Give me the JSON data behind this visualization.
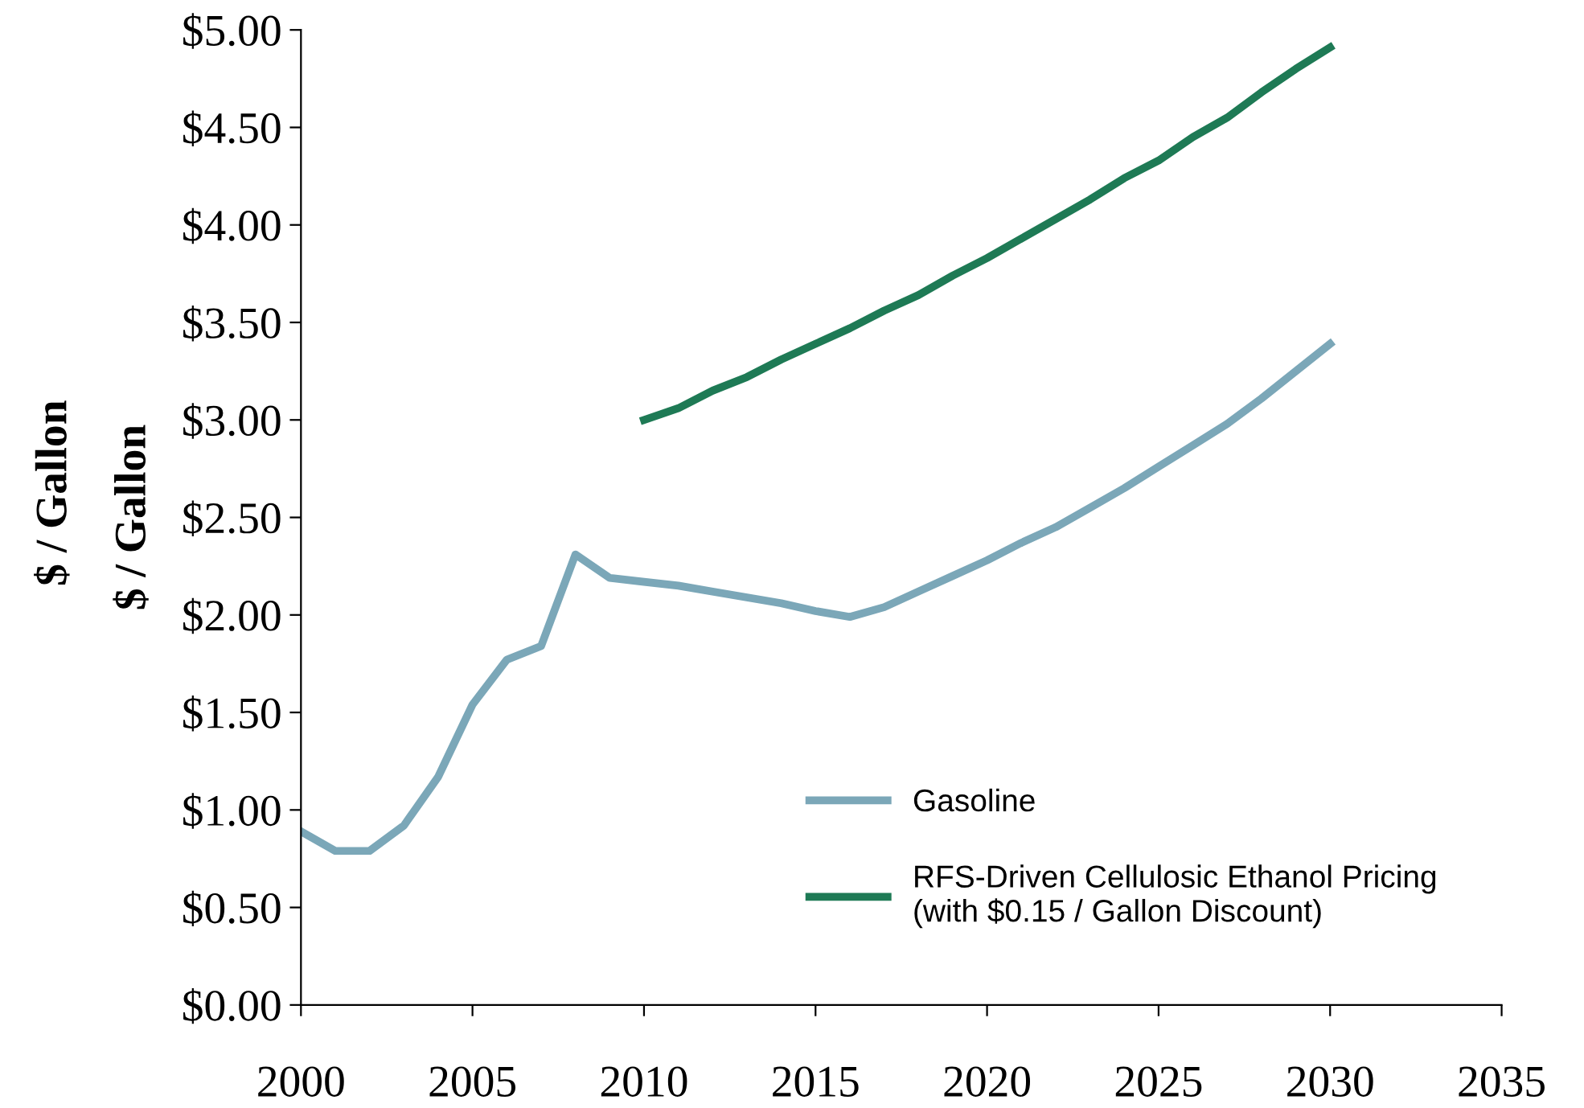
{
  "chart_data": {
    "type": "line",
    "ylabel": "$ / Gallon",
    "annotations": [
      "$ / Gallon"
    ],
    "xlim": [
      2000,
      2035
    ],
    "xticks": [
      2000,
      2005,
      2010,
      2015,
      2020,
      2025,
      2030,
      2035
    ],
    "ylim": [
      0,
      5
    ],
    "yticks": [
      {
        "value": 0,
        "label": "$0.00"
      },
      {
        "value": 0.5,
        "label": "$0.50"
      },
      {
        "value": 1,
        "label": "$1.00"
      },
      {
        "value": 1.5,
        "label": "$1.50"
      },
      {
        "value": 2,
        "label": "$2.00"
      },
      {
        "value": 2.5,
        "label": "$2.50"
      },
      {
        "value": 3,
        "label": "$3.00"
      },
      {
        "value": 3.5,
        "label": "$3.50"
      },
      {
        "value": 4,
        "label": "$4.00"
      },
      {
        "value": 4.5,
        "label": "$4.50"
      },
      {
        "value": 5,
        "label": "$5.00"
      }
    ],
    "grid": false,
    "legend": "bottom right",
    "marker": "none",
    "line_style": "solid",
    "series": [
      {
        "name": "Gasoline",
        "color": "#7ba7b8",
        "x": [
          2000,
          2001,
          2002,
          2003,
          2004,
          2005,
          2006,
          2007,
          2008,
          2009,
          2010,
          2011,
          2012,
          2013,
          2014,
          2015,
          2016,
          2017,
          2018,
          2019,
          2020,
          2021,
          2022,
          2023,
          2024,
          2025,
          2026,
          2027,
          2028,
          2029,
          2030
        ],
        "values": [
          0.89,
          0.79,
          0.79,
          0.92,
          1.17,
          1.54,
          1.77,
          1.84,
          2.31,
          2.19,
          2.17,
          2.15,
          2.12,
          2.09,
          2.06,
          2.02,
          1.99,
          2.04,
          2.12,
          2.2,
          2.28,
          2.37,
          2.45,
          2.55,
          2.65,
          2.76,
          2.87,
          2.98,
          3.11,
          3.25,
          3.39
        ]
      },
      {
        "name": "RFS-Driven Cellulosic Ethanol Pricing\n(with $0.15 / Gallon Discount)",
        "color": "#1e7a55",
        "x": [
          2010,
          2011,
          2012,
          2013,
          2014,
          2015,
          2016,
          2017,
          2018,
          2019,
          2020,
          2021,
          2022,
          2023,
          2024,
          2025,
          2026,
          2027,
          2028,
          2029,
          2030
        ],
        "values": [
          3.0,
          3.06,
          3.15,
          3.22,
          3.31,
          3.39,
          3.47,
          3.56,
          3.64,
          3.74,
          3.83,
          3.93,
          4.03,
          4.13,
          4.24,
          4.33,
          4.45,
          4.55,
          4.68,
          4.8,
          4.91
        ]
      }
    ]
  }
}
